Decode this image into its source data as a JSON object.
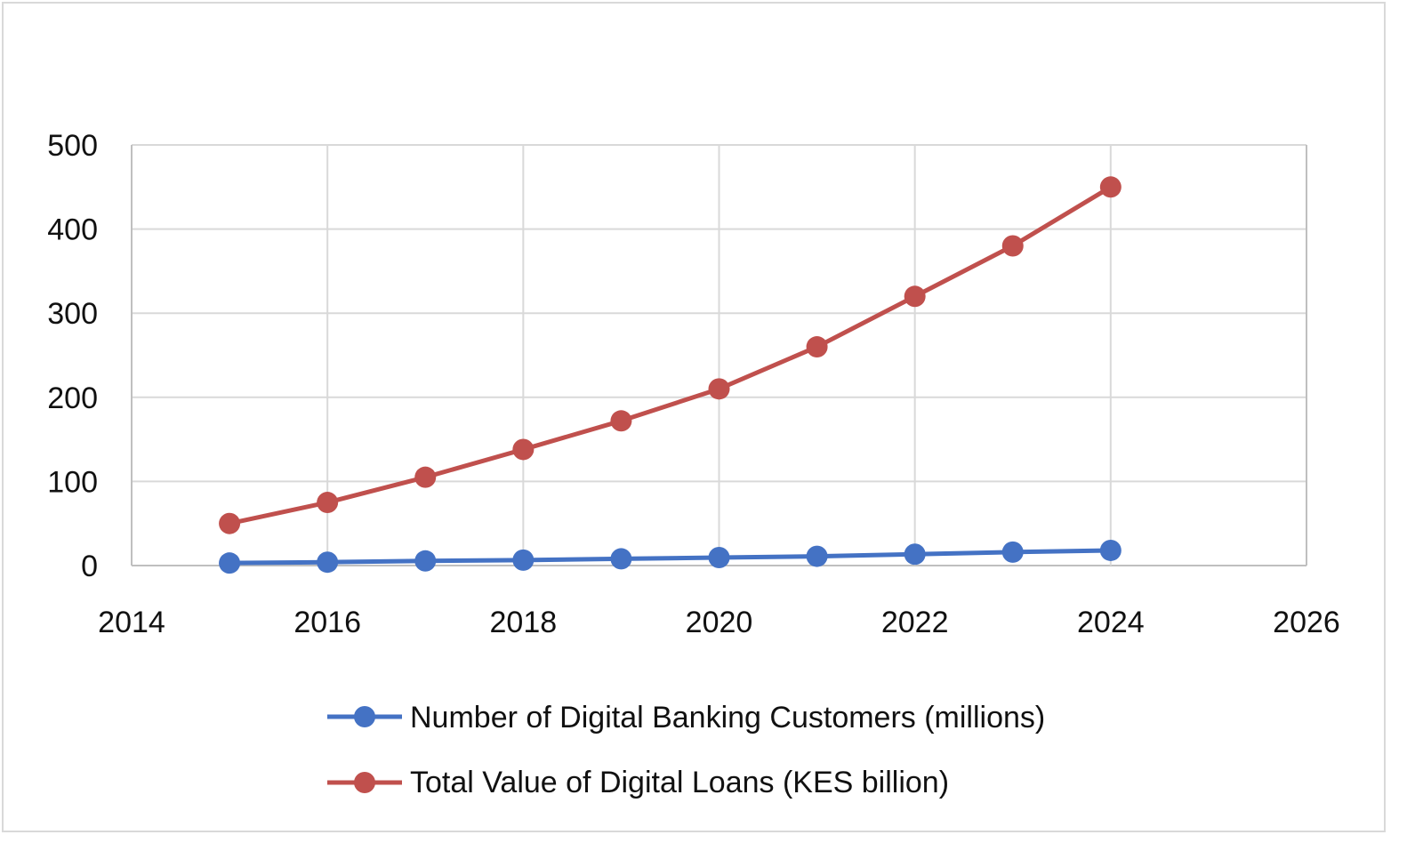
{
  "chart_data": {
    "type": "scatter",
    "title": "",
    "xlabel": "",
    "ylabel": "",
    "xlim": [
      2014,
      2026
    ],
    "ylim": [
      0,
      500
    ],
    "xticks": [
      "2014",
      "2016",
      "2018",
      "2020",
      "2022",
      "2024",
      "2026"
    ],
    "yticks": [
      "0",
      "100",
      "200",
      "300",
      "400",
      "500"
    ],
    "grid": true,
    "legend_position": "bottom",
    "series": [
      {
        "name": "Number of Digital Banking Customers (millions)",
        "color": "#4472c4",
        "x": [
          2015,
          2016,
          2017,
          2018,
          2019,
          2020,
          2021,
          2022,
          2023,
          2024
        ],
        "y": [
          3,
          4,
          5.5,
          6.5,
          8,
          9.5,
          11,
          13.5,
          16,
          18
        ]
      },
      {
        "name": "Total Value of Digital Loans (KES billion)",
        "color": "#c0504d",
        "x": [
          2015,
          2016,
          2017,
          2018,
          2019,
          2020,
          2021,
          2022,
          2023,
          2024
        ],
        "y": [
          50,
          75,
          105,
          138,
          172,
          210,
          260,
          320,
          380,
          450
        ]
      }
    ]
  }
}
